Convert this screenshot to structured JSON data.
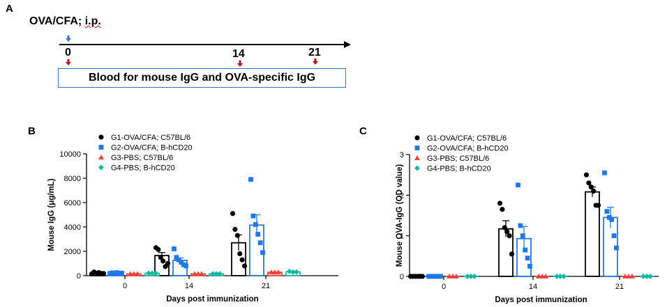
{
  "panel_labels": {
    "a": "A",
    "b": "B",
    "c": "C"
  },
  "timeline": {
    "title_main": "OVA/CFA; ",
    "title_ip": "i.p.",
    "points": [
      "0",
      "14",
      "21"
    ],
    "box_text": "Blood for mouse IgG and OVA-specific IgG"
  },
  "legend": [
    "G1-OVA/CFA; C57BL/6",
    "G2-OVA/CFA; B-hCD20",
    "G3-PBS; C57BL/6",
    "G4-PBS; B-hCD20"
  ],
  "colors": {
    "G1": "#000000",
    "G2": "#1f77ec",
    "G3": "#e8463c",
    "G4": "#18b8a2",
    "arrow_blue": "#2e75d6",
    "arrow_red": "#b81414"
  },
  "chart_data": [
    {
      "type": "bar",
      "ylabel": "Mouse IgG (μg/mL)",
      "xlabel": "Days post immunization",
      "categories": [
        "0",
        "14",
        "21"
      ],
      "ylim": [
        0,
        10000
      ],
      "yticks": [
        "0",
        "2000",
        "4000",
        "6000",
        "8000",
        "10000"
      ],
      "series": [
        {
          "name": "G1-OVA/CFA; C57BL/6",
          "marker": "circle",
          "values": [
            220,
            1650,
            2700
          ],
          "errors": [
            40,
            250,
            650
          ],
          "points": [
            [
              150,
              300,
              200,
              250,
              180,
              180
            ],
            [
              2300,
              2150,
              1500,
              1200,
              750,
              1000
            ],
            [
              5100,
              3800,
              3300,
              1800,
              1300,
              800
            ]
          ]
        },
        {
          "name": "G2-OVA/CFA; B-hCD20",
          "marker": "square",
          "values": [
            200,
            1250,
            4150
          ],
          "errors": [
            30,
            200,
            850
          ],
          "points": [
            [
              180,
              230,
              150,
              250,
              200,
              210
            ],
            [
              2200,
              1500,
              1300,
              1100,
              900,
              800
            ],
            [
              7900,
              4900,
              4200,
              3400,
              2700,
              1900
            ]
          ]
        },
        {
          "name": "G3-PBS; C57BL/6",
          "marker": "triangle",
          "values": [
            150,
            150,
            280
          ],
          "errors": [
            0,
            0,
            20
          ],
          "points": [
            [
              150,
              150,
              150
            ],
            [
              150,
              150,
              150
            ],
            [
              280,
              280,
              280
            ]
          ]
        },
        {
          "name": "G4-PBS; B-hCD20",
          "marker": "diamond",
          "values": [
            200,
            150,
            320
          ],
          "errors": [
            0,
            0,
            30
          ],
          "points": [
            [
              200,
              200,
              200
            ],
            [
              150,
              150,
              150
            ],
            [
              350,
              300,
              300
            ]
          ]
        }
      ]
    },
    {
      "type": "bar",
      "ylabel": "Mouse OVA-IgG (OD value)",
      "xlabel": "Days post immunization",
      "categories": [
        "0",
        "14",
        "21"
      ],
      "ylim": [
        0,
        3
      ],
      "yticks": [
        "0",
        "1",
        "2",
        "3"
      ],
      "series": [
        {
          "name": "G1-OVA/CFA; C57BL/6",
          "marker": "circle",
          "values": [
            0.0,
            1.17,
            2.08
          ],
          "errors": [
            0,
            0.2,
            0.12
          ],
          "points": [
            [
              0,
              0,
              0,
              0,
              0,
              0
            ],
            [
              1.8,
              1.65,
              1.2,
              1.1,
              1.0,
              0.55
            ],
            [
              2.5,
              2.3,
              2.2,
              2.1,
              1.75,
              1.75
            ]
          ]
        },
        {
          "name": "G2-OVA/CFA; B-hCD20",
          "marker": "square",
          "values": [
            0.0,
            0.93,
            1.45
          ],
          "errors": [
            0,
            0.3,
            0.25
          ],
          "points": [
            [
              0,
              0,
              0,
              0,
              0,
              0
            ],
            [
              2.25,
              1.25,
              1.0,
              0.65,
              0.45,
              0.25
            ],
            [
              2.55,
              1.6,
              1.45,
              1.4,
              1.0,
              0.7
            ]
          ]
        },
        {
          "name": "G3-PBS; C57BL/6",
          "marker": "triangle",
          "values": [
            0.0,
            0.0,
            0.0
          ],
          "errors": [
            0,
            0,
            0
          ],
          "points": [
            [
              0,
              0,
              0
            ],
            [
              0,
              0,
              0
            ],
            [
              0,
              0,
              0
            ]
          ]
        },
        {
          "name": "G4-PBS; B-hCD20",
          "marker": "diamond",
          "values": [
            0.0,
            0.0,
            0.0
          ],
          "errors": [
            0,
            0,
            0
          ],
          "points": [
            [
              0,
              0,
              0
            ],
            [
              0,
              0,
              0
            ],
            [
              0,
              0,
              0
            ]
          ]
        }
      ]
    }
  ]
}
